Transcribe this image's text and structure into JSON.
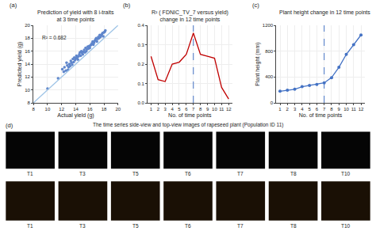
{
  "chart_data": [
    {
      "type": "scatter",
      "title": "Prediction of yield with 8 i-traits\nat 3 time points",
      "xlabel": "Actual yield (g)",
      "ylabel": "Predicted yield (g)",
      "annotations": [
        "(a)",
        "R² = 0.682"
      ],
      "xlim": [
        8,
        20
      ],
      "ylim": [
        8,
        20
      ],
      "xticks": [
        8,
        10,
        12,
        14,
        16,
        18,
        20
      ],
      "yticks": [
        8,
        10,
        12,
        14,
        16,
        18,
        20
      ],
      "grid": true,
      "series": [
        {
          "type": "scatter",
          "color": "#4472C4",
          "x": [
            12.1,
            12.3,
            12.4,
            12.6,
            12.7,
            12.8,
            12.9,
            13.0,
            13.1,
            13.2,
            13.3,
            13.4,
            13.5,
            13.6,
            13.7,
            13.8,
            13.9,
            14.0,
            14.1,
            14.2,
            14.3,
            14.4,
            14.5,
            14.6,
            14.7,
            14.8,
            14.9,
            15.0,
            15.1,
            15.2,
            15.3,
            15.4,
            15.5,
            15.6,
            15.7,
            15.8,
            15.9,
            16.0,
            16.1,
            16.2,
            16.3,
            16.4,
            16.5,
            16.6,
            16.7,
            16.8,
            16.9,
            17.0,
            17.1,
            17.2,
            17.3,
            17.4,
            17.5,
            17.6,
            17.7,
            17.8,
            17.9,
            18.0,
            18.1,
            18.2,
            10.0,
            11.5
          ],
          "values": [
            13.2,
            12.8,
            13.5,
            13.0,
            14.2,
            13.8,
            13.1,
            13.5,
            14.0,
            13.7,
            14.5,
            14.2,
            13.9,
            14.8,
            14.3,
            15.0,
            14.6,
            14.9,
            15.3,
            15.0,
            14.7,
            15.2,
            15.5,
            15.8,
            15.3,
            16.0,
            15.7,
            15.5,
            15.9,
            16.2,
            15.8,
            16.5,
            16.0,
            16.3,
            16.7,
            16.4,
            16.8,
            16.5,
            16.9,
            17.0,
            17.2,
            17.5,
            17.0,
            17.3,
            17.6,
            17.8,
            18.0,
            17.5,
            17.9,
            18.2,
            18.0,
            18.5,
            18.2,
            18.4,
            18.6,
            18.8,
            18.3,
            18.9,
            19.0,
            19.2,
            10.2,
            11.8
          ]
        },
        {
          "type": "line",
          "color": "#9DC3E6",
          "x": [
            8,
            20
          ],
          "values": [
            8,
            20
          ]
        }
      ]
    },
    {
      "type": "line",
      "title": "R² ( FDNIC_TV_7 versus yield)\nchange in 12 time points",
      "xlabel": "No. of time points",
      "annotations": [
        "(b)"
      ],
      "xlim": [
        0.5,
        12.5
      ],
      "ylim": [
        0,
        0.4
      ],
      "xticks": [
        1,
        2,
        3,
        4,
        5,
        6,
        7,
        8,
        9,
        10,
        11,
        12
      ],
      "yticks": [
        {
          "value": 0,
          "label": "0.0"
        },
        0.1,
        0.2,
        0.3,
        0.4
      ],
      "grid": true,
      "series": [
        {
          "type": "line",
          "color": "#C00000",
          "x": [
            1,
            2,
            3,
            4,
            5,
            6,
            7,
            8,
            9,
            10,
            11,
            12
          ],
          "values": [
            0.24,
            0.12,
            0.11,
            0.2,
            0.21,
            0.25,
            0.36,
            0.25,
            0.24,
            0.23,
            0.08,
            0.02
          ]
        },
        {
          "type": "line",
          "color": "#4472C4",
          "line_style": "dashed",
          "x": [
            7,
            7
          ],
          "values": [
            0,
            0.4
          ]
        }
      ]
    },
    {
      "type": "line",
      "title": "Plant height change in 12 time points",
      "xlabel": "No. of time points",
      "ylabel": "Plant height (mm)",
      "annotations": [
        "(c)"
      ],
      "xlim": [
        0.5,
        12.5
      ],
      "ylim": [
        0,
        1200
      ],
      "xticks": [
        1,
        2,
        3,
        4,
        5,
        6,
        7,
        8,
        9,
        10,
        11,
        12
      ],
      "yticks": [
        0,
        400,
        800,
        1200
      ],
      "grid": true,
      "series": [
        {
          "type": "line",
          "color": "#4472C4",
          "marker": "circle",
          "x": [
            1,
            2,
            3,
            4,
            5,
            6,
            7,
            8,
            9,
            10,
            11,
            12
          ],
          "values": [
            180,
            195,
            210,
            250,
            270,
            285,
            310,
            390,
            550,
            750,
            900,
            1050
          ]
        },
        {
          "type": "line",
          "color": "#4472C4",
          "line_style": "dashed",
          "x": [
            7,
            7
          ],
          "values": [
            0,
            1200
          ]
        }
      ]
    },
    {
      "type": "image_grid",
      "title": "The time series side-view and top-view images of rapeseed plant (Population ID 11)",
      "annotations": [
        "(d)"
      ],
      "categories": [
        "T1",
        "T3",
        "T5",
        "T6",
        "T7",
        "T8",
        "T10"
      ],
      "series": [
        {
          "color": "#050505"
        },
        {
          "color": "#1a1005"
        }
      ]
    }
  ]
}
